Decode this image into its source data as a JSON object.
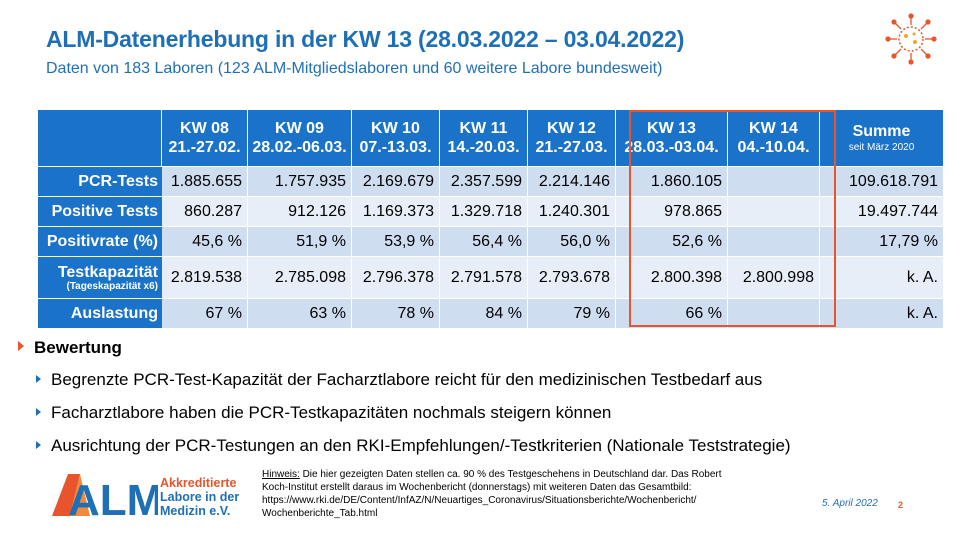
{
  "header": {
    "title": "ALM-Datenerhebung in der KW 13 (28.03.2022 – 03.04.2022)",
    "subtitle": "Daten von 183 Laboren (123 ALM-Mitgliedslaboren und 60 weitere Labore bundesweit)"
  },
  "table": {
    "columns": [
      {
        "week": "KW 08",
        "range": "21.-27.02."
      },
      {
        "week": "KW 09",
        "range": "28.02.-06.03."
      },
      {
        "week": "KW 10",
        "range": "07.-13.03."
      },
      {
        "week": "KW 11",
        "range": "14.-20.03."
      },
      {
        "week": "KW 12",
        "range": "21.-27.03."
      },
      {
        "week": "KW 13",
        "range": "28.03.-03.04."
      },
      {
        "week": "KW 14",
        "range": "04.-10.04."
      }
    ],
    "sum_header": {
      "label": "Summe",
      "sub": "seit März 2020"
    },
    "rows": [
      {
        "label": "PCR-Tests",
        "values": [
          "1.885.655",
          "1.757.935",
          "2.169.679",
          "2.357.599",
          "2.214.146",
          "1.860.105",
          ""
        ],
        "sum": "109.618.791"
      },
      {
        "label": "Positive Tests",
        "values": [
          "860.287",
          "912.126",
          "1.169.373",
          "1.329.718",
          "1.240.301",
          "978.865",
          ""
        ],
        "sum": "19.497.744"
      },
      {
        "label": "Positivrate (%)",
        "values": [
          "45,6 %",
          "51,9 %",
          "53,9 %",
          "56,4 %",
          "56,0 %",
          "52,6 %",
          ""
        ],
        "sum": "17,79 %"
      },
      {
        "label": "Testkapazität",
        "sublabel": "(Tageskapazität x6)",
        "values": [
          "2.819.538",
          "2.785.098",
          "2.796.378",
          "2.791.578",
          "2.793.678",
          "2.800.398",
          "2.800.998"
        ],
        "sum": "k. A."
      },
      {
        "label": "Auslastung",
        "values": [
          "67 %",
          "63 %",
          "78 %",
          "84 %",
          "79 %",
          "66 %",
          ""
        ],
        "sum": "k. A."
      }
    ]
  },
  "bewertung": {
    "heading": "Bewertung",
    "items": [
      "Begrenzte PCR-Test-Kapazität der Facharztlabore reicht für den medizinischen Testbedarf aus",
      "Facharztlabore haben die PCR-Testkapazitäten nochmals steigern können",
      "Ausrichtung der PCR-Testungen an den RKI-Empfehlungen/-Testkriterien (Nationale Teststrategie)"
    ]
  },
  "logo": {
    "letters": "ALM",
    "line1": "Akkreditierte",
    "line2": "Labore in der",
    "line3": "Medizin e.V."
  },
  "note": {
    "label": "Hinweis:",
    "line1": " Die hier gezeigten Daten stellen ca. 90 % des Testgeschehens in Deutschland dar. Das Robert",
    "line2": "Koch-Institut erstellt daraus im Wochenbericht (donnerstags) mit weiteren Daten das Gesamtbild:",
    "line3": "https://www.rki.de/DE/Content/InfAZ/N/Neuartiges_Coronavirus/Situationsberichte/Wochenbericht/",
    "line4": "Wochenberichte_Tab.html"
  },
  "footer": {
    "date": "5. April 2022",
    "page": "2"
  },
  "colors": {
    "primary": "#1a73c9",
    "accent": "#e8552c",
    "row_a": "#cfddf0",
    "row_b": "#e8eef7"
  }
}
